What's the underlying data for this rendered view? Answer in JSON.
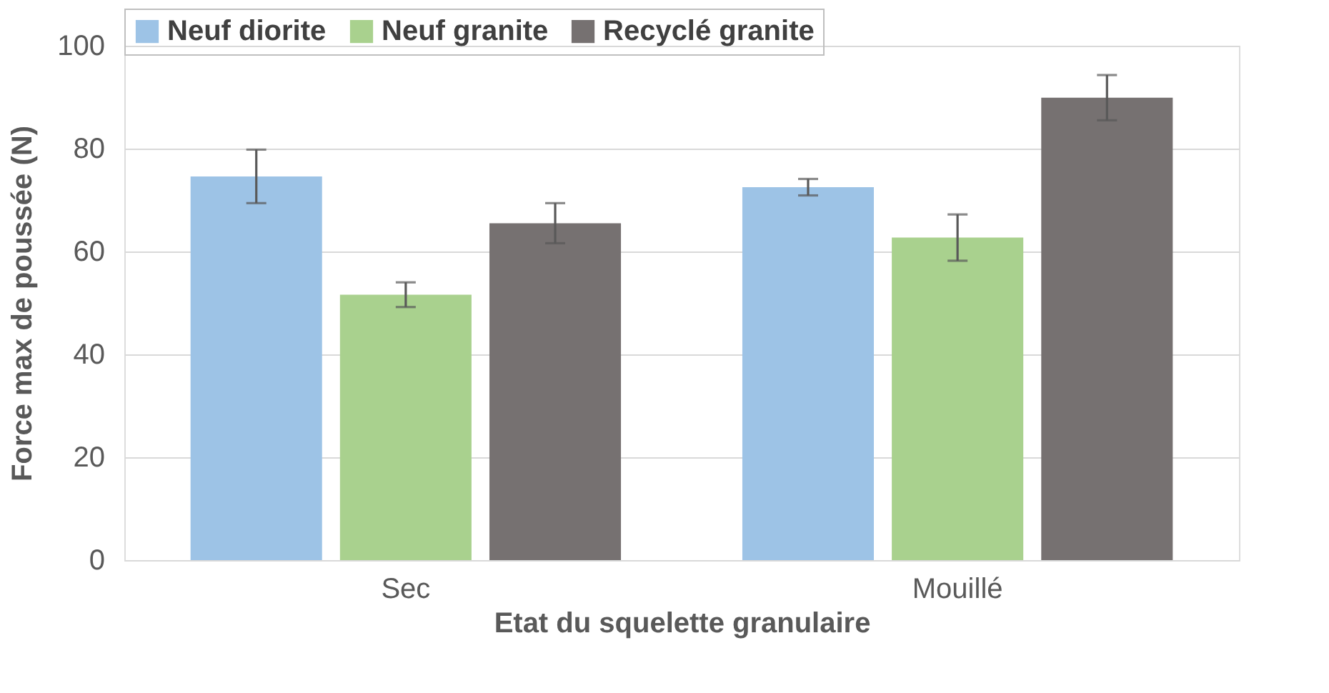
{
  "chart_data": {
    "type": "bar",
    "xlabel": "Etat du squelette granulaire",
    "ylabel": "Force max de poussée (N)",
    "categories": [
      "Sec",
      "Mouillé"
    ],
    "series": [
      {
        "name": "Neuf diorite",
        "color": "#9dc3e6",
        "values": [
          74.6,
          72.5
        ],
        "errors": [
          5.2,
          1.6
        ]
      },
      {
        "name": "Neuf granite",
        "color": "#a9d18e",
        "values": [
          51.6,
          62.7
        ],
        "errors": [
          2.4,
          4.5
        ]
      },
      {
        "name": "Recyclé granite",
        "color": "#767171",
        "values": [
          65.5,
          89.9
        ],
        "errors": [
          3.9,
          4.4
        ]
      }
    ],
    "ylim": [
      0,
      100
    ],
    "yticks": [
      0,
      20,
      40,
      60,
      80,
      100
    ],
    "grid": "y",
    "legend": "top"
  }
}
